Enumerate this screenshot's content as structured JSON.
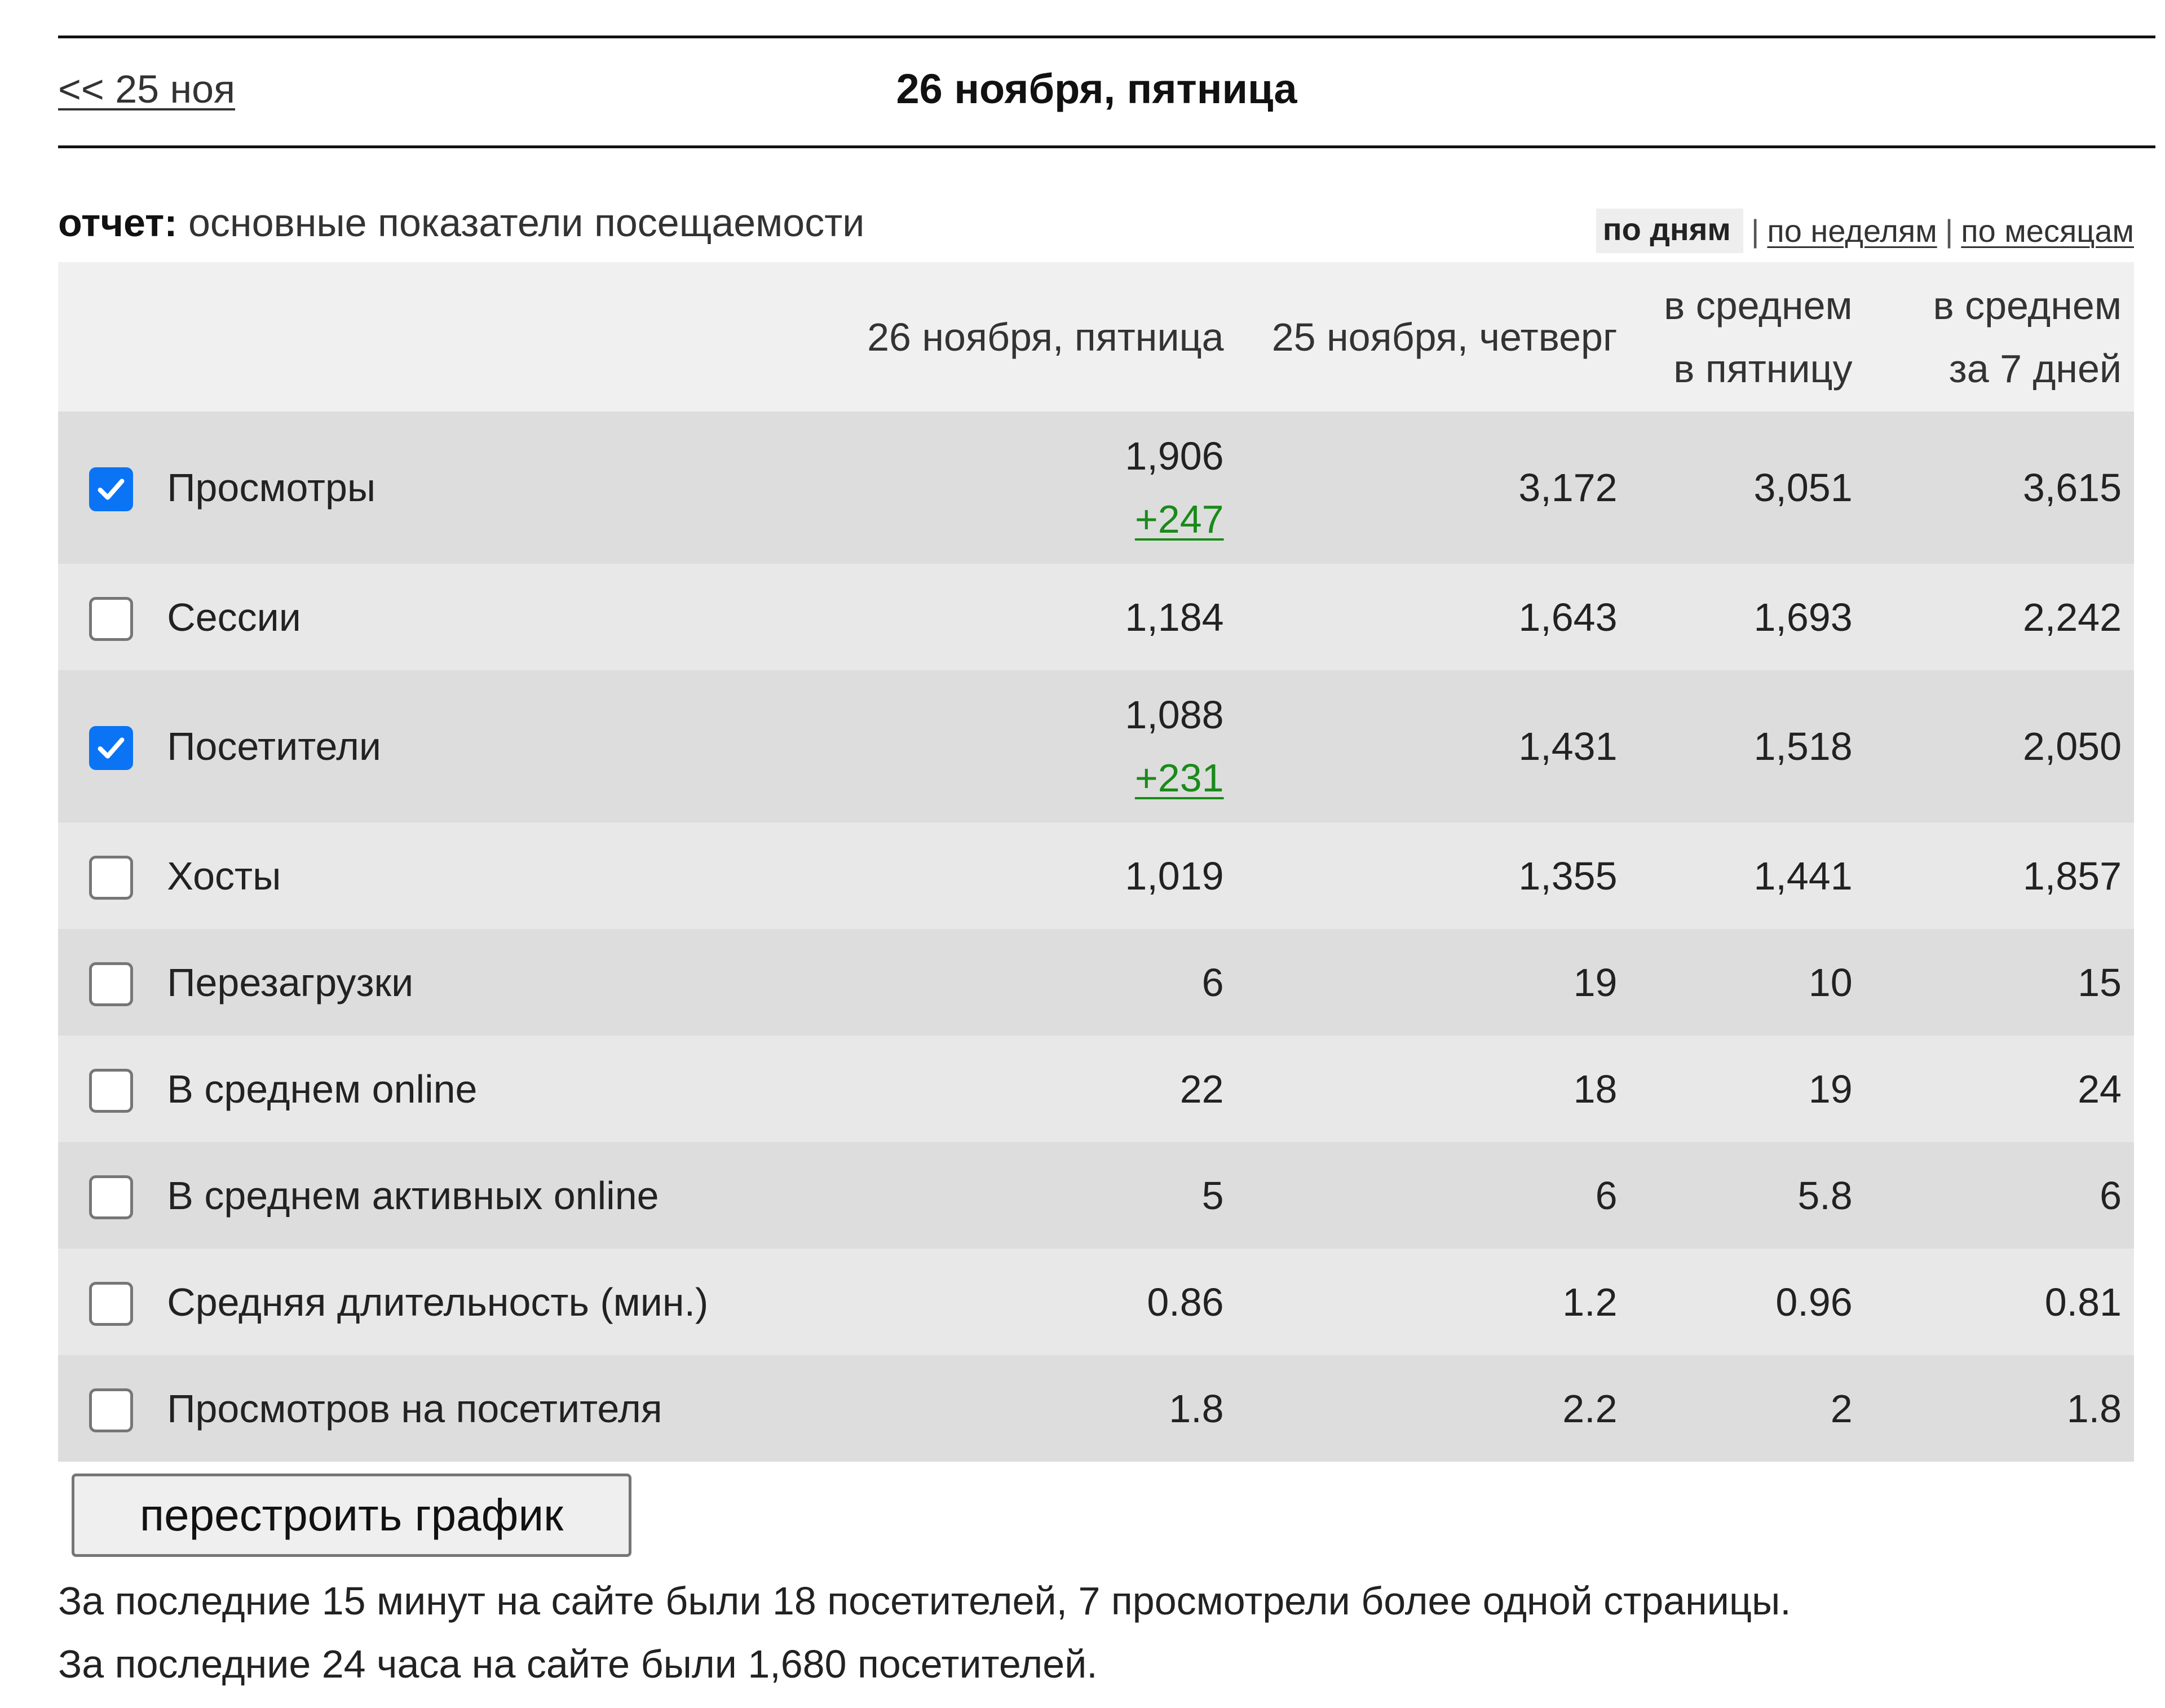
{
  "nav": {
    "prev_label": "<< 25 ноя",
    "title": "26 ноября, пятница"
  },
  "report": {
    "label_bold": "отчет:",
    "label_text": "основные показатели посещаемости"
  },
  "period_switch": {
    "active": "по дням",
    "separator": "|",
    "weeks": "по неделям",
    "months": "по месяцам"
  },
  "table": {
    "columns": [
      "26 ноября, пятница",
      "25 ноября, четверг",
      "в среднем в пятницу",
      "в среднем за 7 дней"
    ],
    "column_lines": [
      [
        "26 ноября, пятница"
      ],
      [
        "25 ноября, четверг"
      ],
      [
        "в среднем",
        "в пятницу"
      ],
      [
        "в среднем",
        "за 7 дней"
      ]
    ],
    "rows": [
      {
        "label": "Просмотры",
        "checked": true,
        "values": [
          "1,906",
          "3,172",
          "3,051",
          "3,615"
        ],
        "delta": "+247"
      },
      {
        "label": "Сессии",
        "checked": false,
        "values": [
          "1,184",
          "1,643",
          "1,693",
          "2,242"
        ]
      },
      {
        "label": "Посетители",
        "checked": true,
        "values": [
          "1,088",
          "1,431",
          "1,518",
          "2,050"
        ],
        "delta": "+231"
      },
      {
        "label": "Хосты",
        "checked": false,
        "values": [
          "1,019",
          "1,355",
          "1,441",
          "1,857"
        ]
      },
      {
        "label": "Перезагрузки",
        "checked": false,
        "values": [
          "6",
          "19",
          "10",
          "15"
        ]
      },
      {
        "label": "В среднем online",
        "checked": false,
        "values": [
          "22",
          "18",
          "19",
          "24"
        ]
      },
      {
        "label": "В среднем активных online",
        "checked": false,
        "values": [
          "5",
          "6",
          "5.8",
          "6"
        ]
      },
      {
        "label": "Средняя длительность (мин.)",
        "checked": false,
        "values": [
          "0.86",
          "1.2",
          "0.96",
          "0.81"
        ]
      },
      {
        "label": "Просмотров на посетителя",
        "checked": false,
        "values": [
          "1.8",
          "2.2",
          "2",
          "1.8"
        ]
      }
    ]
  },
  "actions": {
    "rebuild_label": "перестроить график"
  },
  "footer": {
    "line1": "За последние 15 минут на сайте были 18 посетителей, 7 просмотрели более одной страницы.",
    "line2": "За последние 24 часа на сайте были 1,680 посетителей."
  },
  "colors": {
    "checkbox_checked": "#0a74f5",
    "delta_positive": "#1a8a1a",
    "row_dark": "#dddddd",
    "row_light": "#e8e8e8",
    "header_bg": "#f0f0f0"
  }
}
